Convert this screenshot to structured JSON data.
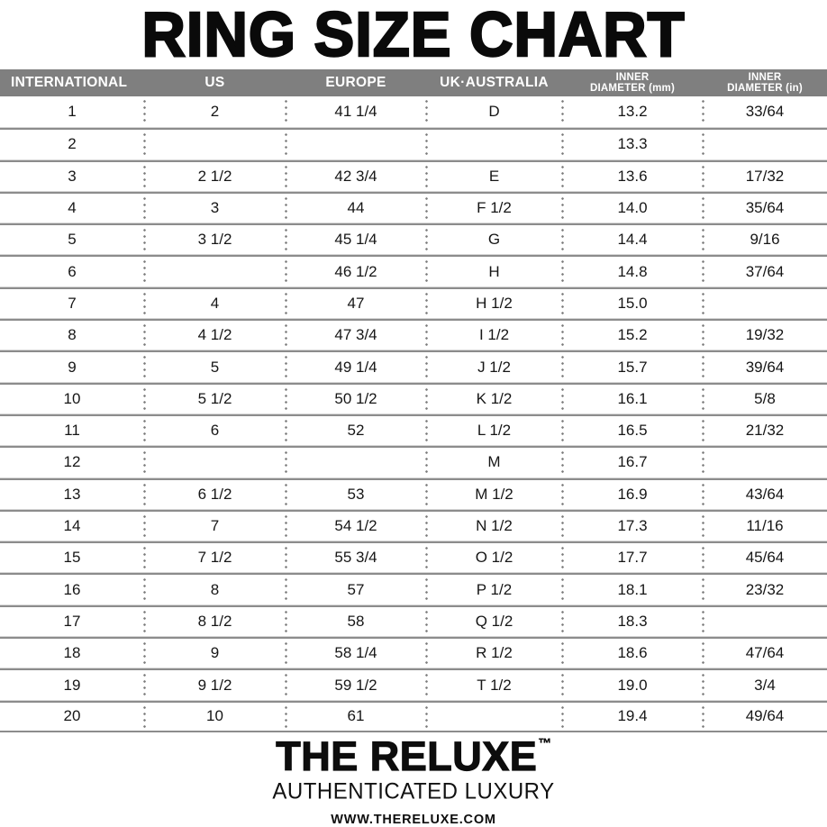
{
  "title": "RING SIZE CHART",
  "chart_data": {
    "type": "table",
    "title": "RING SIZE CHART",
    "columns": [
      "INTERNATIONAL",
      "US",
      "EUROPE",
      "UK·AUSTRALIA",
      "INNER DIAMETER (mm)",
      "INNER DIAMETER (in)"
    ],
    "header": [
      {
        "line1": "INTERNATIONAL"
      },
      {
        "line1": "US"
      },
      {
        "line1": "EUROPE"
      },
      {
        "line1": "UK·AUSTRALIA"
      },
      {
        "line1": "INNER",
        "line2": "DIAMETER (mm)"
      },
      {
        "line1": "INNER",
        "line2": "DIAMETER (in)"
      }
    ],
    "rows": [
      [
        "1",
        "2",
        "41 1/4",
        "D",
        "13.2",
        "33/64"
      ],
      [
        "2",
        "",
        "",
        "",
        "13.3",
        ""
      ],
      [
        "3",
        "2 1/2",
        "42 3/4",
        "E",
        "13.6",
        "17/32"
      ],
      [
        "4",
        "3",
        "44",
        "F 1/2",
        "14.0",
        "35/64"
      ],
      [
        "5",
        "3 1/2",
        "45 1/4",
        "G",
        "14.4",
        "9/16"
      ],
      [
        "6",
        "",
        "46 1/2",
        "H",
        "14.8",
        "37/64"
      ],
      [
        "7",
        "4",
        "47",
        "H 1/2",
        "15.0",
        ""
      ],
      [
        "8",
        "4 1/2",
        "47 3/4",
        "I 1/2",
        "15.2",
        "19/32"
      ],
      [
        "9",
        "5",
        "49 1/4",
        "J 1/2",
        "15.7",
        "39/64"
      ],
      [
        "10",
        "5 1/2",
        "50 1/2",
        "K 1/2",
        "16.1",
        "5/8"
      ],
      [
        "11",
        "6",
        "52",
        "L 1/2",
        "16.5",
        "21/32"
      ],
      [
        "12",
        "",
        "",
        "M",
        "16.7",
        ""
      ],
      [
        "13",
        "6 1/2",
        "53",
        "M 1/2",
        "16.9",
        "43/64"
      ],
      [
        "14",
        "7",
        "54 1/2",
        "N 1/2",
        "17.3",
        "11/16"
      ],
      [
        "15",
        "7 1/2",
        "55 3/4",
        "O 1/2",
        "17.7",
        "45/64"
      ],
      [
        "16",
        "8",
        "57",
        "P 1/2",
        "18.1",
        "23/32"
      ],
      [
        "17",
        "8 1/2",
        "58",
        "Q 1/2",
        "18.3",
        ""
      ],
      [
        "18",
        "9",
        "58 1/4",
        "R 1/2",
        "18.6",
        "47/64"
      ],
      [
        "19",
        "9 1/2",
        "59 1/2",
        "T 1/2",
        "19.0",
        "3/4"
      ],
      [
        "20",
        "10",
        "61",
        "",
        "19.4",
        "49/64"
      ]
    ]
  },
  "footer": {
    "brand": "THE RELUXE",
    "trademark": "™",
    "tagline": "AUTHENTICATED LUXURY",
    "website": "WWW.THERELUXE.COM"
  },
  "colors": {
    "header_bg": "#7f7f7f",
    "header_text": "#ffffff",
    "body_text": "#161616",
    "title_color": "#0a0a0a",
    "divider_dark": "#8c8c8c",
    "divider_light": "#d6d6d6",
    "dot_color": "#7a7a7a"
  }
}
